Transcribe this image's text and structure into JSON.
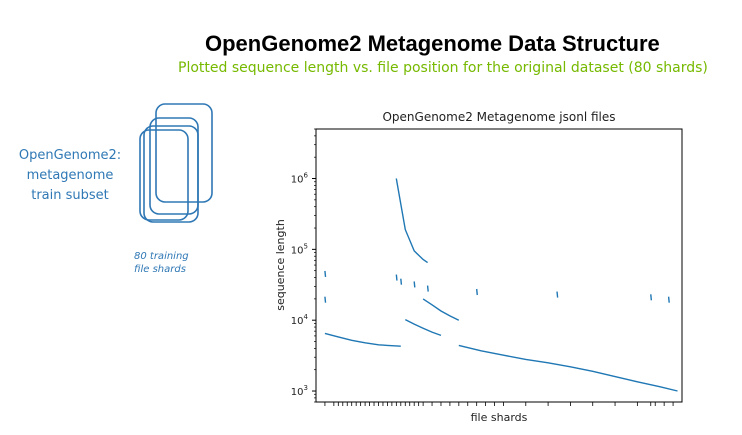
{
  "header": {
    "title": "OpenGenome2 Metagenome Data Structure",
    "subtitle": "Plotted sequence length vs. file position for the original dataset (80 shards)"
  },
  "dataset": {
    "label_lines": [
      "OpenGenome2:",
      "metagenome",
      "train subset"
    ],
    "shard_caption_lines": [
      "80 training",
      "file shards"
    ]
  },
  "colors": {
    "accent_green": "#76b900",
    "sketch_blue": "#2f78b5",
    "series_blue": "#1f77b4"
  },
  "chart_data": {
    "type": "scatter",
    "title": "OpenGenome2 Metagenome jsonl files",
    "xlabel": "file shards",
    "ylabel": "sequence length",
    "y_scale": "log",
    "y_ticks": [
      {
        "base": "10",
        "exp": "3",
        "value": 1000
      },
      {
        "base": "10",
        "exp": "4",
        "value": 10000
      },
      {
        "base": "10",
        "exp": "5",
        "value": 100000
      },
      {
        "base": "10",
        "exp": "6",
        "value": 1000000
      }
    ],
    "ylim": [
      700,
      5000000
    ],
    "xlim": [
      -2,
      80
    ],
    "x_tick_labels_shown": false,
    "x_ticks": [
      0,
      2,
      3,
      4,
      5,
      6,
      7,
      8,
      9,
      10,
      11,
      12,
      13,
      14,
      15,
      16,
      17,
      18,
      19,
      20,
      21,
      22,
      24,
      26,
      28,
      30,
      32,
      34,
      36,
      38,
      40,
      45,
      50,
      55,
      60,
      65,
      70,
      73,
      74,
      76,
      78
    ],
    "series": [
      {
        "kind": "line",
        "x": [
          0,
          3,
          6,
          9,
          12,
          14,
          17
        ],
        "y": [
          6500,
          5800,
          5200,
          4800,
          4500,
          4400,
          4300
        ]
      },
      {
        "kind": "line",
        "x": [
          16,
          18,
          20,
          22,
          23
        ],
        "y": [
          1000000,
          190000,
          95000,
          72000,
          65000
        ]
      },
      {
        "kind": "line",
        "x": [
          18,
          20,
          22,
          24,
          26
        ],
        "y": [
          10200,
          8800,
          7700,
          6800,
          6100
        ]
      },
      {
        "kind": "line",
        "x": [
          22,
          24,
          26,
          28,
          30
        ],
        "y": [
          20000,
          16500,
          13500,
          11500,
          10000
        ]
      },
      {
        "kind": "line",
        "x": [
          30,
          35,
          40,
          45,
          50,
          55,
          60,
          65,
          70,
          75,
          79
        ],
        "y": [
          4400,
          3700,
          3200,
          2800,
          2500,
          2200,
          1900,
          1600,
          1350,
          1150,
          1000
        ]
      },
      {
        "kind": "marks",
        "x": [
          0,
          0,
          16,
          17,
          20,
          23,
          34,
          52,
          73,
          77
        ],
        "y": [
          45000,
          19500,
          40000,
          35000,
          32000,
          28000,
          25000,
          23000,
          21000,
          19500
        ]
      }
    ]
  }
}
